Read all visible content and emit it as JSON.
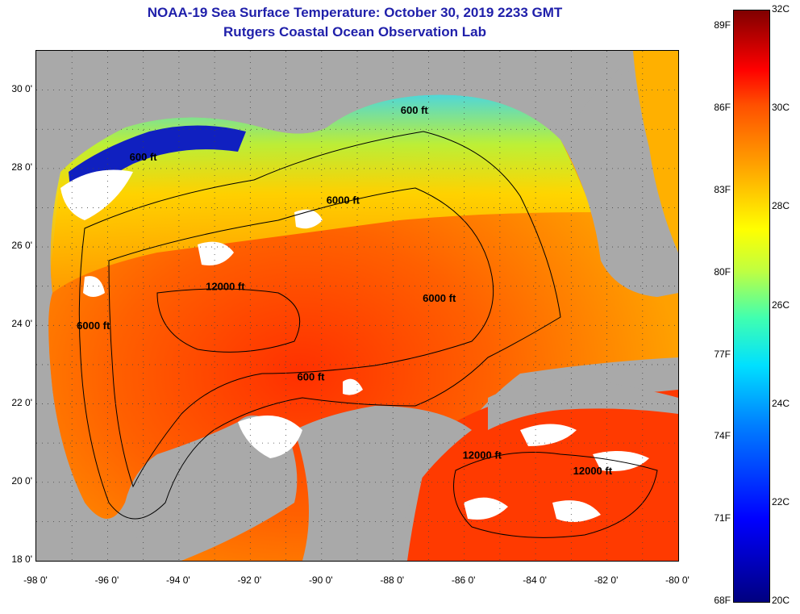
{
  "title": {
    "line1": "NOAA-19 Sea Surface Temperature:  October 30, 2019 2233 GMT",
    "line2": "Rutgers Coastal Ocean Observation Lab"
  },
  "axes": {
    "latitude": [
      {
        "value": 30,
        "label": "30 0'"
      },
      {
        "value": 28,
        "label": "28 0'"
      },
      {
        "value": 26,
        "label": "26 0'"
      },
      {
        "value": 24,
        "label": "24 0'"
      },
      {
        "value": 22,
        "label": "22 0'"
      },
      {
        "value": 20,
        "label": "20 0'"
      },
      {
        "value": 18,
        "label": "18 0'"
      }
    ],
    "longitude": [
      {
        "value": -98,
        "label": "-98 0'"
      },
      {
        "value": -96,
        "label": "-96 0'"
      },
      {
        "value": -94,
        "label": "-94 0'"
      },
      {
        "value": -92,
        "label": "-92 0'"
      },
      {
        "value": -90,
        "label": "-90 0'"
      },
      {
        "value": -88,
        "label": "-88 0'"
      },
      {
        "value": -86,
        "label": "-86 0'"
      },
      {
        "value": -84,
        "label": "-84 0'"
      },
      {
        "value": -82,
        "label": "-82 0'"
      },
      {
        "value": -80,
        "label": "-80 0'"
      }
    ],
    "lat_range": [
      18,
      31
    ],
    "lon_range": [
      -98,
      -80
    ]
  },
  "depth_contours": [
    {
      "label": "600 ft",
      "lon": -95.0,
      "lat": 28.2
    },
    {
      "label": "600 ft",
      "lon": -87.4,
      "lat": 29.4
    },
    {
      "label": "6000 ft",
      "lon": -89.4,
      "lat": 27.1
    },
    {
      "label": "12000 ft",
      "lon": -92.7,
      "lat": 24.9
    },
    {
      "label": "6000 ft",
      "lon": -86.7,
      "lat": 24.6
    },
    {
      "label": "6000 ft",
      "lon": -96.4,
      "lat": 23.9
    },
    {
      "label": "600 ft",
      "lon": -90.3,
      "lat": 22.6
    },
    {
      "label": "12000 ft",
      "lon": -85.5,
      "lat": 20.6
    },
    {
      "label": "12000 ft",
      "lon": -82.4,
      "lat": 20.2
    }
  ],
  "colorbar": {
    "fahrenheit": [
      {
        "value": 89,
        "label": "89F"
      },
      {
        "value": 86,
        "label": "86F"
      },
      {
        "value": 83,
        "label": "83F"
      },
      {
        "value": 80,
        "label": "80F"
      },
      {
        "value": 77,
        "label": "77F"
      },
      {
        "value": 74,
        "label": "74F"
      },
      {
        "value": 71,
        "label": "71F"
      },
      {
        "value": 68,
        "label": "68F"
      }
    ],
    "celsius": [
      {
        "value": 32,
        "label": "32C"
      },
      {
        "value": 30,
        "label": "30C"
      },
      {
        "value": 28,
        "label": "28C"
      },
      {
        "value": 26,
        "label": "26C"
      },
      {
        "value": 24,
        "label": "24C"
      },
      {
        "value": 22,
        "label": "22C"
      },
      {
        "value": 20,
        "label": "20C"
      }
    ]
  },
  "colors": {
    "land": "#a9a9a9",
    "cloud": "#ffffff",
    "title": "#1f1faa"
  }
}
